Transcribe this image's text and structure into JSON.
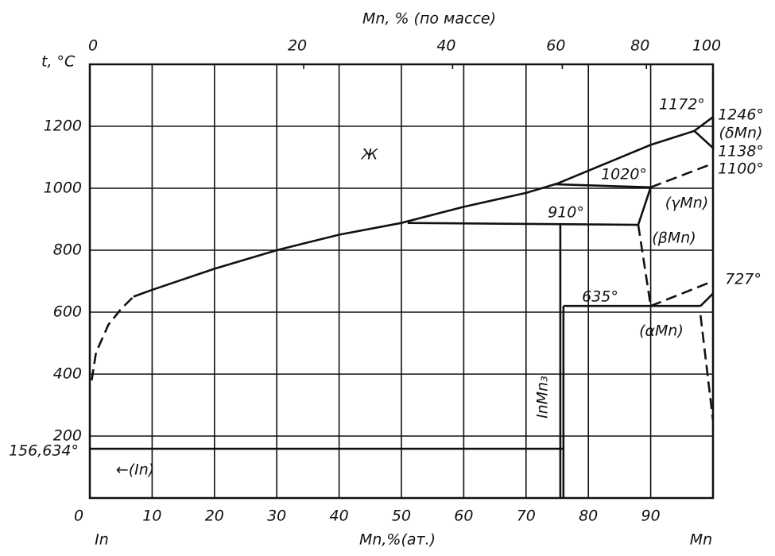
{
  "chart_data": {
    "type": "line",
    "x_label": "Mn,%(ат.)",
    "x2_label": "Mn, % (по массе)",
    "y_label": "t, °C",
    "left_label": "In",
    "right_label": "Mn",
    "xlim": [
      0,
      100
    ],
    "xticks": [
      0,
      10,
      20,
      30,
      40,
      50,
      60,
      70,
      80,
      90
    ],
    "x2ticks": [
      0,
      20,
      40,
      60,
      80,
      100
    ],
    "ylim": [
      0,
      1400
    ],
    "yticks": [
      200,
      400,
      600,
      800,
      1000,
      1200
    ],
    "grid": true,
    "color": "#111111",
    "series": [
      {
        "x": [
          7,
          10,
          20,
          30,
          40,
          50,
          60,
          70,
          75,
          90,
          97,
          100
        ],
        "y": [
          650,
          672,
          740,
          800,
          850,
          888,
          940,
          985,
          1015,
          1140,
          1185,
          1230
        ],
        "dashed": false
      },
      {
        "x": [
          0.3,
          1,
          3,
          5,
          7
        ],
        "y": [
          380,
          470,
          560,
          610,
          650
        ],
        "dashed": true
      },
      {
        "x": [
          51,
          88
        ],
        "y": [
          888,
          882
        ],
        "dashed": false
      },
      {
        "x": [
          75.5,
          75.5
        ],
        "y": [
          0,
          882
        ],
        "dashed": false
      },
      {
        "x": [
          76,
          76
        ],
        "y": [
          0,
          620
        ],
        "dashed": false
      },
      {
        "x": [
          76,
          98
        ],
        "y": [
          620,
          620
        ],
        "dashed": false
      },
      {
        "x": [
          0,
          76
        ],
        "y": [
          159,
          159
        ],
        "dashed": false
      },
      {
        "x": [
          74.5,
          90
        ],
        "y": [
          1013,
          1003
        ],
        "dashed": false
      },
      {
        "x": [
          88,
          90
        ],
        "y": [
          882,
          1003
        ],
        "dashed": false
      },
      {
        "x": [
          88,
          90
        ],
        "y": [
          882,
          620
        ],
        "dashed": true
      },
      {
        "x": [
          90,
          100
        ],
        "y": [
          620,
          700
        ],
        "dashed": true
      },
      {
        "x": [
          98,
          100
        ],
        "y": [
          620,
          660
        ],
        "dashed": false
      },
      {
        "x": [
          98,
          100
        ],
        "y": [
          590,
          250
        ],
        "dashed": true
      },
      {
        "x": [
          97,
          100,
          100
        ],
        "y": [
          1185,
          1130,
          1230
        ],
        "dashed": false
      },
      {
        "x": [
          90,
          100
        ],
        "y": [
          1003,
          1080
        ],
        "dashed": true
      }
    ],
    "annotations": [
      "Ж",
      "910°",
      "1020°",
      "1172°",
      "1246°",
      "(δMn)",
      "1138°",
      "1100°",
      "(γMn)",
      "(βMn)",
      "635°",
      "727°",
      "(αMn)",
      "InMn₃",
      "156,634°",
      "←(In)"
    ]
  }
}
